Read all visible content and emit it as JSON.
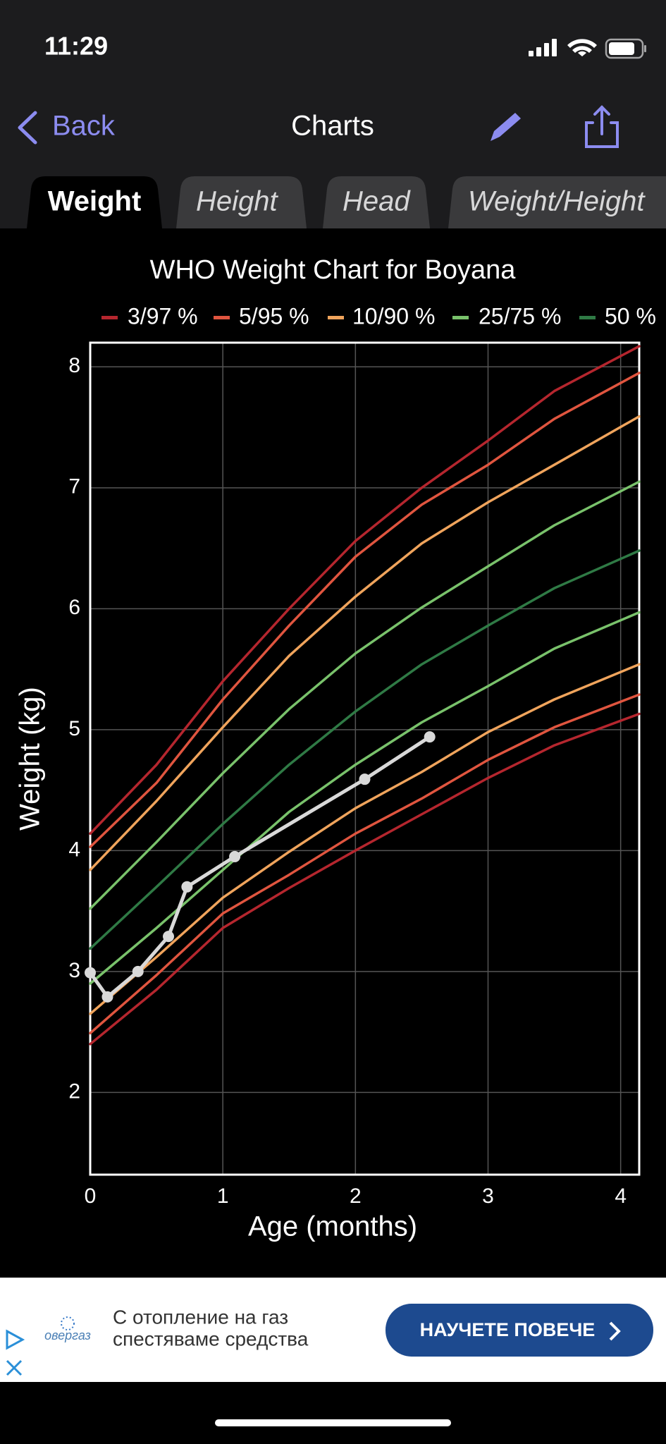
{
  "status": {
    "time": "11:29"
  },
  "nav": {
    "back": "Back",
    "title": "Charts"
  },
  "tabs": [
    "Weight",
    "Height",
    "Head",
    "Weight/Height"
  ],
  "chart_data": {
    "type": "line",
    "title": "WHO Weight Chart for Boyana",
    "x_label": "Age (months)",
    "y_label": "Weight (kg)",
    "x": [
      0,
      0.5,
      1,
      1.5,
      2,
      2.5,
      3,
      3.5,
      4.14
    ],
    "series": [
      {
        "name": "3/97 %",
        "color": "#b5262e",
        "upper": [
          4.14,
          4.71,
          5.4,
          6.0,
          6.56,
          7.0,
          7.39,
          7.8,
          8.17
        ],
        "lower": [
          2.4,
          2.85,
          3.36,
          3.69,
          4.0,
          4.3,
          4.6,
          4.87,
          5.13
        ]
      },
      {
        "name": "5/95 %",
        "color": "#e0553f",
        "upper": [
          4.03,
          4.56,
          5.25,
          5.86,
          6.43,
          6.86,
          7.19,
          7.57,
          7.95
        ],
        "lower": [
          2.49,
          2.97,
          3.48,
          3.8,
          4.14,
          4.43,
          4.75,
          5.02,
          5.29
        ]
      },
      {
        "name": "10/90 %",
        "color": "#f0a45c",
        "upper": [
          3.84,
          4.41,
          5.02,
          5.61,
          6.1,
          6.54,
          6.88,
          7.19,
          7.59
        ],
        "lower": [
          2.65,
          3.12,
          3.61,
          3.99,
          4.35,
          4.65,
          4.98,
          5.25,
          5.54
        ]
      },
      {
        "name": "25/75 %",
        "color": "#79c26b",
        "upper": [
          3.52,
          4.07,
          4.64,
          5.17,
          5.63,
          6.01,
          6.35,
          6.69,
          7.05
        ],
        "lower": [
          2.9,
          3.36,
          3.84,
          4.32,
          4.71,
          5.06,
          5.36,
          5.67,
          5.97
        ]
      },
      {
        "name": "50 %",
        "color": "#2f7a45",
        "values": [
          3.19,
          3.7,
          4.22,
          4.71,
          5.15,
          5.54,
          5.86,
          6.17,
          6.48
        ]
      }
    ],
    "measurements": {
      "color": "#d9d9d9",
      "x": [
        0,
        0.13,
        0.36,
        0.59,
        0.73,
        1.09,
        2.07,
        2.56
      ],
      "values": [
        2.99,
        2.79,
        3.0,
        3.29,
        3.7,
        3.95,
        4.59,
        4.94
      ]
    },
    "xlim": [
      0,
      4.14
    ],
    "ylim": [
      1.32,
      8.2
    ],
    "xticks": [
      0,
      1,
      2,
      3,
      4
    ],
    "yticks": [
      2,
      3,
      4,
      5,
      6,
      7,
      8
    ],
    "grid": true
  },
  "ad": {
    "logo": "овергаз",
    "line1": "С отопление на газ",
    "line2": "спестяваме средства",
    "button": "НАУЧЕТЕ ПОВЕЧЕ"
  }
}
